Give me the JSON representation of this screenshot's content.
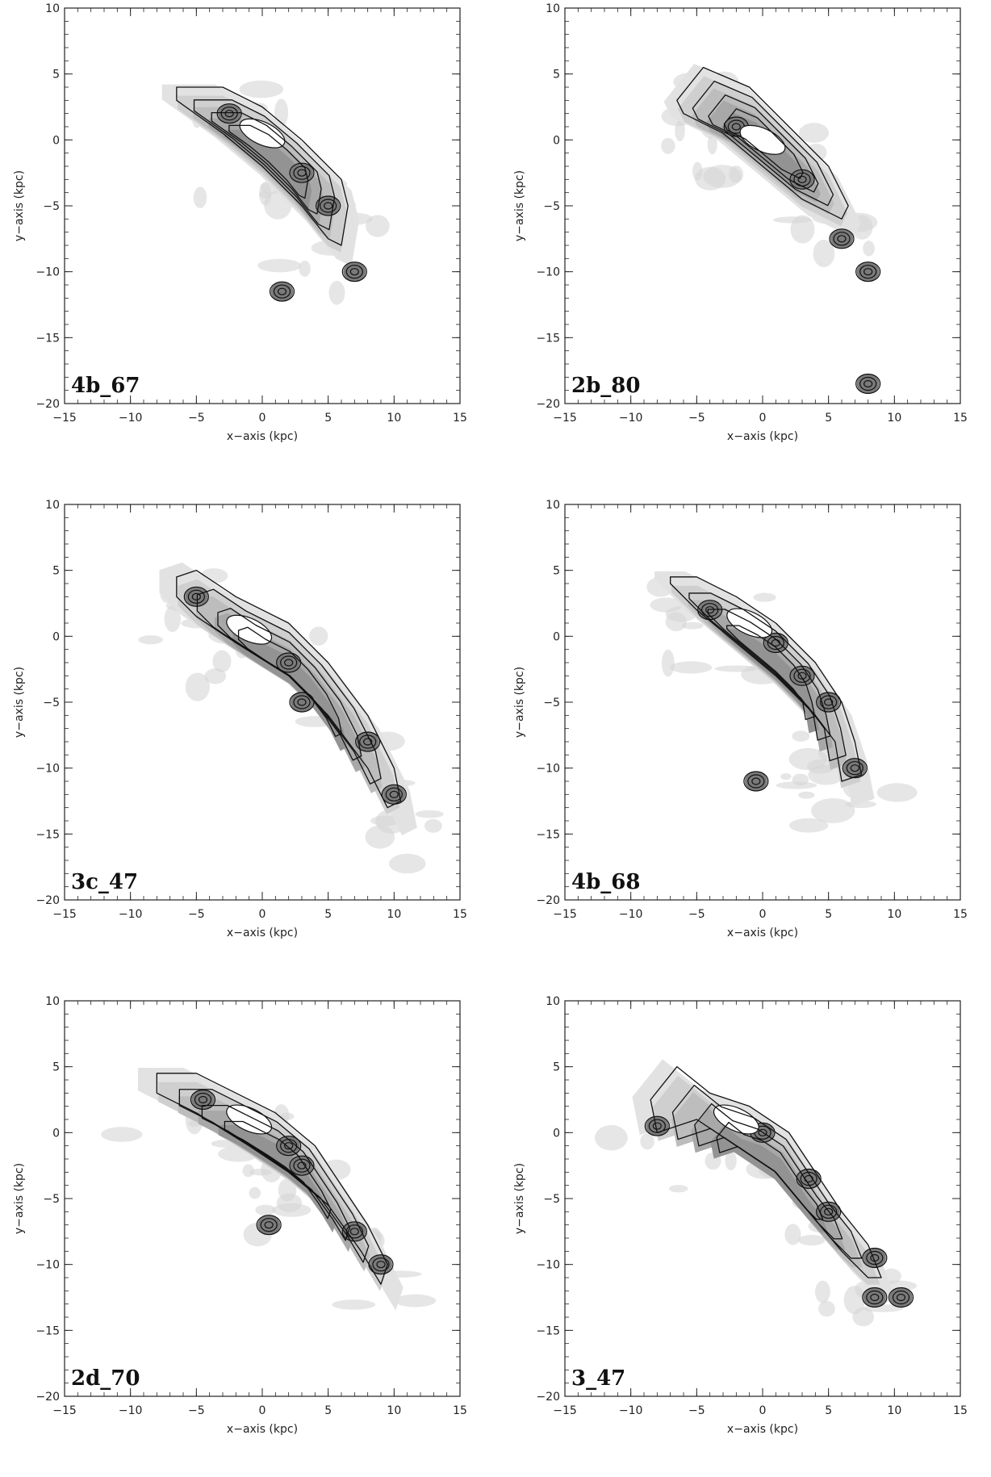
{
  "chart_data": [
    {
      "type": "contour",
      "label": "4b_67",
      "xlabel": "x−axis (kpc)",
      "ylabel": "y−axis (kpc)",
      "xlim": [
        -15,
        15
      ],
      "ylim": [
        -20,
        10
      ],
      "x_ticks": [
        "−15",
        "−10",
        "−5",
        "0",
        "5",
        "10",
        "15"
      ],
      "y_ticks": [
        "10",
        "5",
        "0",
        "−5",
        "−10",
        "−15",
        "−20"
      ],
      "outer_contour": [
        [
          -6.5,
          4
        ],
        [
          -3,
          4
        ],
        [
          0,
          2.5
        ],
        [
          3,
          0
        ],
        [
          6,
          -3
        ],
        [
          6.5,
          -5
        ],
        [
          6,
          -8
        ],
        [
          5,
          -7.5
        ],
        [
          3,
          -5
        ],
        [
          0,
          -2
        ],
        [
          -3,
          0.5
        ],
        [
          -6.5,
          3
        ]
      ],
      "knots": [
        [
          -2.5,
          2
        ],
        [
          0,
          0.5
        ],
        [
          3,
          -2.5
        ],
        [
          5,
          -5
        ],
        [
          7,
          -10
        ],
        [
          1.5,
          -11.5
        ]
      ]
    },
    {
      "type": "contour",
      "label": "2b_80",
      "xlabel": "x−axis (kpc)",
      "ylabel": "y−axis (kpc)",
      "xlim": [
        -15,
        15
      ],
      "ylim": [
        -20,
        10
      ],
      "x_ticks": [
        "−15",
        "−10",
        "−5",
        "0",
        "5",
        "10",
        "15"
      ],
      "y_ticks": [
        "10",
        "5",
        "0",
        "−5",
        "−10",
        "−15",
        "−20"
      ],
      "outer_contour": [
        [
          -6.5,
          3
        ],
        [
          -4.5,
          5.5
        ],
        [
          -1,
          4
        ],
        [
          2,
          1
        ],
        [
          5,
          -2
        ],
        [
          6.5,
          -5
        ],
        [
          6,
          -6
        ],
        [
          3,
          -4.5
        ],
        [
          0,
          -2
        ],
        [
          -3,
          0.5
        ],
        [
          -6,
          2
        ]
      ],
      "knots": [
        [
          -2,
          1
        ],
        [
          0,
          0
        ],
        [
          3,
          -3
        ],
        [
          6,
          -7.5
        ],
        [
          8,
          -10
        ],
        [
          8,
          -18.5
        ]
      ]
    },
    {
      "type": "contour",
      "label": "3c_47",
      "xlabel": "x−axis (kpc)",
      "ylabel": "y−axis (kpc)",
      "xlim": [
        -15,
        15
      ],
      "ylim": [
        -20,
        10
      ],
      "x_ticks": [
        "−15",
        "−10",
        "−5",
        "0",
        "5",
        "10",
        "15"
      ],
      "y_ticks": [
        "10",
        "5",
        "0",
        "−5",
        "−10",
        "−15",
        "−20"
      ],
      "outer_contour": [
        [
          -6.5,
          4.5
        ],
        [
          -5,
          5
        ],
        [
          -2,
          3
        ],
        [
          2,
          1
        ],
        [
          5,
          -2
        ],
        [
          8,
          -6
        ],
        [
          10,
          -10
        ],
        [
          10.5,
          -12.5
        ],
        [
          9.5,
          -13
        ],
        [
          8,
          -10
        ],
        [
          5,
          -6
        ],
        [
          2,
          -3
        ],
        [
          -2,
          -0.5
        ],
        [
          -5,
          1.5
        ],
        [
          -6.5,
          3
        ]
      ],
      "knots": [
        [
          -5,
          3
        ],
        [
          -1,
          0.5
        ],
        [
          2,
          -2
        ],
        [
          3,
          -5
        ],
        [
          8,
          -8
        ],
        [
          10,
          -12
        ]
      ]
    },
    {
      "type": "contour",
      "label": "4b_68",
      "xlabel": "x−axis (kpc)",
      "ylabel": "y−axis (kpc)",
      "xlim": [
        -15,
        15
      ],
      "ylim": [
        -20,
        10
      ],
      "x_ticks": [
        "−15",
        "−10",
        "−5",
        "0",
        "5",
        "10",
        "15"
      ],
      "y_ticks": [
        "10",
        "5",
        "0",
        "−5",
        "−10",
        "−15",
        "−20"
      ],
      "outer_contour": [
        [
          -7,
          4.5
        ],
        [
          -5,
          4.5
        ],
        [
          -2,
          3
        ],
        [
          1,
          1
        ],
        [
          4,
          -2
        ],
        [
          6,
          -5
        ],
        [
          7,
          -8
        ],
        [
          7.5,
          -10.5
        ],
        [
          6,
          -11
        ],
        [
          5.5,
          -8
        ],
        [
          4,
          -6
        ],
        [
          1,
          -3
        ],
        [
          -2,
          -0.5
        ],
        [
          -5,
          2
        ],
        [
          -7,
          4
        ]
      ],
      "knots": [
        [
          -4,
          2
        ],
        [
          -1,
          1
        ],
        [
          1,
          -0.5
        ],
        [
          3,
          -3
        ],
        [
          5,
          -5
        ],
        [
          7,
          -10
        ],
        [
          -0.5,
          -11
        ]
      ]
    },
    {
      "type": "contour",
      "label": "2d_70",
      "xlabel": "x−axis (kpc)",
      "ylabel": "y−axis (kpc)",
      "xlim": [
        -15,
        15
      ],
      "ylim": [
        -20,
        10
      ],
      "x_ticks": [
        "−15",
        "−10",
        "−5",
        "0",
        "5",
        "10",
        "15"
      ],
      "y_ticks": [
        "10",
        "5",
        "0",
        "−5",
        "−10",
        "−15",
        "−20"
      ],
      "outer_contour": [
        [
          -8,
          4.5
        ],
        [
          -5,
          4.5
        ],
        [
          -2,
          3
        ],
        [
          1,
          1.5
        ],
        [
          4,
          -1
        ],
        [
          6,
          -4
        ],
        [
          8,
          -7
        ],
        [
          9.5,
          -10
        ],
        [
          9,
          -11.5
        ],
        [
          7.5,
          -9
        ],
        [
          5,
          -5.5
        ],
        [
          2,
          -3
        ],
        [
          -1,
          -1
        ],
        [
          -5,
          1.5
        ],
        [
          -8,
          3
        ]
      ],
      "knots": [
        [
          -4.5,
          2.5
        ],
        [
          -1,
          1
        ],
        [
          2,
          -1
        ],
        [
          3,
          -2.5
        ],
        [
          0.5,
          -7
        ],
        [
          7,
          -7.5
        ],
        [
          9,
          -10
        ]
      ]
    },
    {
      "type": "contour",
      "label": "3_47",
      "xlabel": "x−axis (kpc)",
      "ylabel": "y−axis (kpc)",
      "xlim": [
        -15,
        15
      ],
      "ylim": [
        -20,
        10
      ],
      "x_ticks": [
        "−15",
        "−10",
        "−5",
        "0",
        "5",
        "10",
        "15"
      ],
      "y_ticks": [
        "10",
        "5",
        "0",
        "−5",
        "−10",
        "−15",
        "−20"
      ],
      "outer_contour": [
        [
          -8.5,
          2.5
        ],
        [
          -6.5,
          5
        ],
        [
          -4,
          3
        ],
        [
          -1,
          2
        ],
        [
          2,
          0
        ],
        [
          4,
          -3
        ],
        [
          6,
          -6
        ],
        [
          8,
          -8.5
        ],
        [
          9,
          -11
        ],
        [
          8,
          -11
        ],
        [
          6,
          -9
        ],
        [
          3.5,
          -6
        ],
        [
          1,
          -3
        ],
        [
          -2,
          -1
        ],
        [
          -5,
          1
        ],
        [
          -8,
          0
        ]
      ],
      "knots": [
        [
          -8,
          0.5
        ],
        [
          -2,
          1
        ],
        [
          0,
          0
        ],
        [
          3.5,
          -3.5
        ],
        [
          5,
          -6
        ],
        [
          8.5,
          -9.5
        ],
        [
          8.5,
          -12.5
        ],
        [
          10.5,
          -12.5
        ]
      ]
    }
  ]
}
